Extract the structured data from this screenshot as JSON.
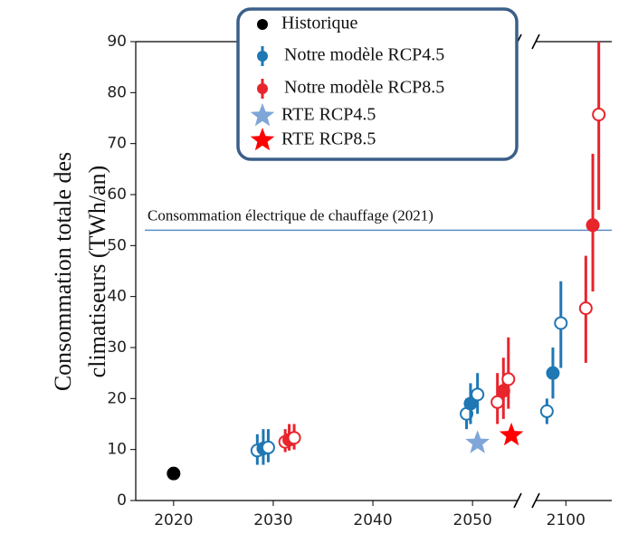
{
  "chart_data": {
    "type": "scatter",
    "y_label": [
      "Consommation totale des",
      "climatiseurs (TWh/an)"
    ],
    "ylim": [
      0,
      90
    ],
    "yticks": [
      0,
      10,
      20,
      30,
      40,
      50,
      60,
      70,
      80,
      90
    ],
    "x_segments": [
      [
        2016.2,
        2054.8
      ],
      [
        2096.8,
        2104.6
      ]
    ],
    "xticks": [
      2020,
      2030,
      2040,
      2050,
      2100
    ],
    "reference_line": {
      "value": 53,
      "label": "Consommation électrique de chauffage (2021)",
      "color": "#5b8fc7"
    },
    "series": [
      {
        "name": "Historique",
        "color": "#000000",
        "marker": "circle",
        "x": [
          2020
        ],
        "values": [
          5.3
        ]
      },
      {
        "name": "Notre modèle RCP4.5",
        "color": "#1f77b4",
        "marker": "circle",
        "x": [
          2028.4,
          2029.0,
          2029.5,
          2049.4,
          2049.8,
          2050.5,
          2098.1,
          2098.7,
          2099.5
        ],
        "values": [
          9.8,
          10.2,
          10.4,
          17.0,
          19.0,
          20.8,
          17.5,
          25.0,
          34.8
        ],
        "lower": [
          7,
          7,
          7.5,
          14,
          15,
          17,
          15,
          20,
          26
        ],
        "upper": [
          13,
          14,
          14,
          20,
          23,
          25,
          20,
          30,
          43
        ],
        "open": [
          true,
          false,
          true,
          true,
          false,
          true,
          true,
          false,
          true
        ]
      },
      {
        "name": "Notre modèle RCP8.5",
        "color": "#e8242c",
        "marker": "circle",
        "x": [
          2031.2,
          2031.6,
          2032.1,
          2052.5,
          2053.1,
          2053.6,
          2102.0,
          2102.7,
          2103.3
        ],
        "values": [
          11.5,
          11.9,
          12.3,
          19.3,
          21.5,
          23.8,
          37.7,
          54,
          75.7
        ],
        "lower": [
          9.5,
          9.8,
          10,
          15,
          16,
          18,
          27,
          41,
          57
        ],
        "upper": [
          14,
          15,
          15,
          25,
          28,
          32,
          48,
          68,
          90
        ],
        "open": [
          true,
          false,
          true,
          true,
          false,
          true,
          true,
          false,
          true
        ]
      },
      {
        "name": "RTE RCP4.5",
        "color": "#7ea6d8",
        "marker": "star",
        "x": [
          2050.5
        ],
        "values": [
          11.3
        ]
      },
      {
        "name": "RTE RCP8.5",
        "color": "#ff0000",
        "marker": "star",
        "x": [
          2053.9
        ],
        "values": [
          12.8
        ]
      }
    ]
  }
}
